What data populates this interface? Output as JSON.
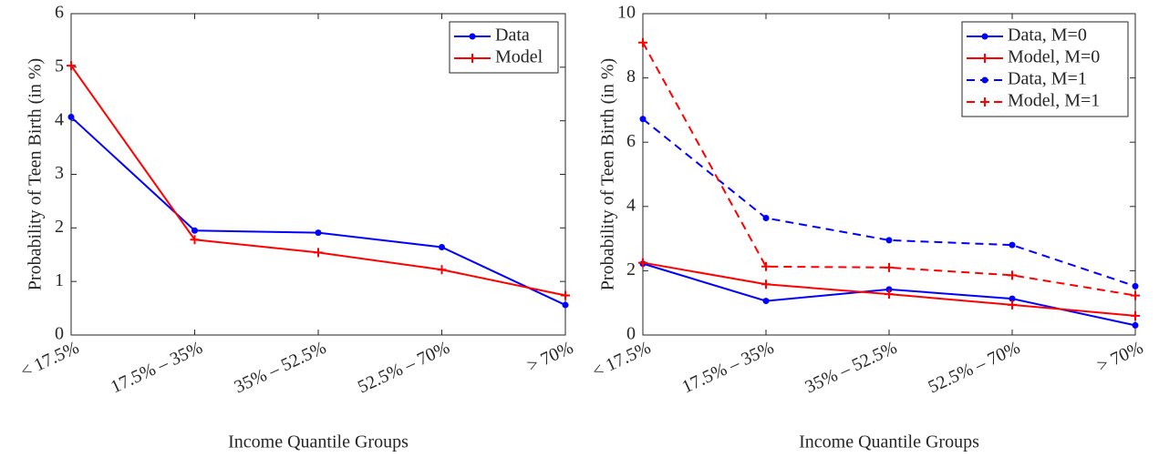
{
  "chart_data": [
    {
      "type": "line",
      "xlabel": "Income Quantile Groups",
      "ylabel": "Probability of Teen Birth (in %)",
      "categories": [
        "< 17.5%",
        "17.5% – 35%",
        "35% – 52.5%",
        "52.5% – 70%",
        "> 70%"
      ],
      "ylim": [
        0,
        6
      ],
      "yticks": [
        0,
        1,
        2,
        3,
        4,
        5,
        6
      ],
      "legend": "upper right",
      "series": [
        {
          "name": "Data",
          "color": "#0000ff",
          "marker": "dot",
          "dash": false,
          "values": [
            4.07,
            1.95,
            1.91,
            1.64,
            0.56
          ]
        },
        {
          "name": "Model",
          "color": "#ff0000",
          "marker": "plus",
          "dash": false,
          "values": [
            5.03,
            1.78,
            1.54,
            1.22,
            0.74
          ]
        }
      ]
    },
    {
      "type": "line",
      "xlabel": "Income Quantile Groups",
      "ylabel": "Probability of Teen Birth (in %)",
      "categories": [
        "< 17.5%",
        "17.5% – 35%",
        "35% – 52.5%",
        "52.5% – 70%",
        "> 70%"
      ],
      "ylim": [
        0,
        10
      ],
      "yticks": [
        0,
        2,
        4,
        6,
        8,
        10
      ],
      "legend": "upper right",
      "series": [
        {
          "name": "Data, M=0",
          "color": "#0000ff",
          "marker": "dot",
          "dash": false,
          "values": [
            2.22,
            1.06,
            1.42,
            1.13,
            0.3
          ]
        },
        {
          "name": "Model, M=0",
          "color": "#ff0000",
          "marker": "plus",
          "dash": false,
          "values": [
            2.25,
            1.58,
            1.27,
            0.94,
            0.6
          ]
        },
        {
          "name": "Data, M=1",
          "color": "#0000ff",
          "marker": "dot",
          "dash": true,
          "values": [
            6.72,
            3.64,
            2.95,
            2.8,
            1.52
          ]
        },
        {
          "name": "Model, M=1",
          "color": "#ff0000",
          "marker": "plus",
          "dash": true,
          "values": [
            9.1,
            2.13,
            2.1,
            1.86,
            1.23
          ]
        }
      ]
    }
  ]
}
